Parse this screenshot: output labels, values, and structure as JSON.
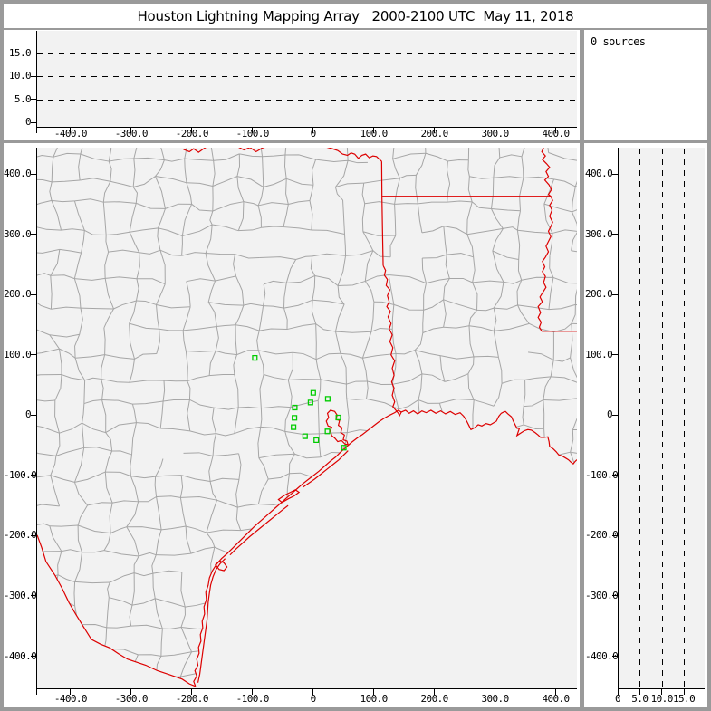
{
  "title": "Houston Lightning Mapping Array   2000-2100 UTC  May 11, 2018",
  "sources_panel": {
    "text": "0 sources"
  },
  "colors": {
    "chrome_gray": "#9a9a9a",
    "panel_white": "#ffffff",
    "plot_background": "#f2f2f2",
    "county_line": "#a6a6a6",
    "state_border_red": "#dd0000",
    "station_green": "#00cc00",
    "axis_black": "#000000"
  },
  "altitude_axis": {
    "ticks": [
      {
        "value": 0,
        "label": "0"
      },
      {
        "value": 5,
        "label": "5.0"
      },
      {
        "value": 10,
        "label": "10.0"
      },
      {
        "value": 15,
        "label": "15.0"
      }
    ],
    "dashed_levels": [
      5,
      10,
      15
    ]
  },
  "east_west_axis": {
    "ticks": [
      {
        "value": -400,
        "label": "-400.0"
      },
      {
        "value": -300,
        "label": "-300.0"
      },
      {
        "value": -200,
        "label": "-200.0"
      },
      {
        "value": -100,
        "label": "-100.0"
      },
      {
        "value": 0,
        "label": "0"
      },
      {
        "value": 100,
        "label": "100.0"
      },
      {
        "value": 200,
        "label": "200.0"
      },
      {
        "value": 300,
        "label": "300.0"
      },
      {
        "value": 400,
        "label": "400.0"
      }
    ]
  },
  "north_south_axis": {
    "ticks": [
      {
        "value": 400,
        "label": "400.0"
      },
      {
        "value": 300,
        "label": "300.0"
      },
      {
        "value": 200,
        "label": "200.0"
      },
      {
        "value": 100,
        "label": "100.0"
      },
      {
        "value": 0,
        "label": "0"
      },
      {
        "value": -100,
        "label": "-100.0"
      },
      {
        "value": -200,
        "label": "-200.0"
      },
      {
        "value": -300,
        "label": "-300.0"
      },
      {
        "value": -400,
        "label": "-400.0"
      }
    ]
  },
  "stations": [
    {
      "e": -97,
      "n": 95
    },
    {
      "e": -0.5,
      "n": 37
    },
    {
      "e": 23.5,
      "n": 27
    },
    {
      "e": -5,
      "n": 21
    },
    {
      "e": -31,
      "n": 12.5
    },
    {
      "e": 41,
      "n": -4
    },
    {
      "e": -31.5,
      "n": -4.5
    },
    {
      "e": -33,
      "n": -20
    },
    {
      "e": -14,
      "n": -35
    },
    {
      "e": 4.5,
      "n": -41.5
    },
    {
      "e": 23,
      "n": -27
    },
    {
      "e": 50,
      "n": -54
    }
  ],
  "map_features": [
    "county-boundaries",
    "state-boundaries",
    "coastline",
    "lma-stations"
  ]
}
